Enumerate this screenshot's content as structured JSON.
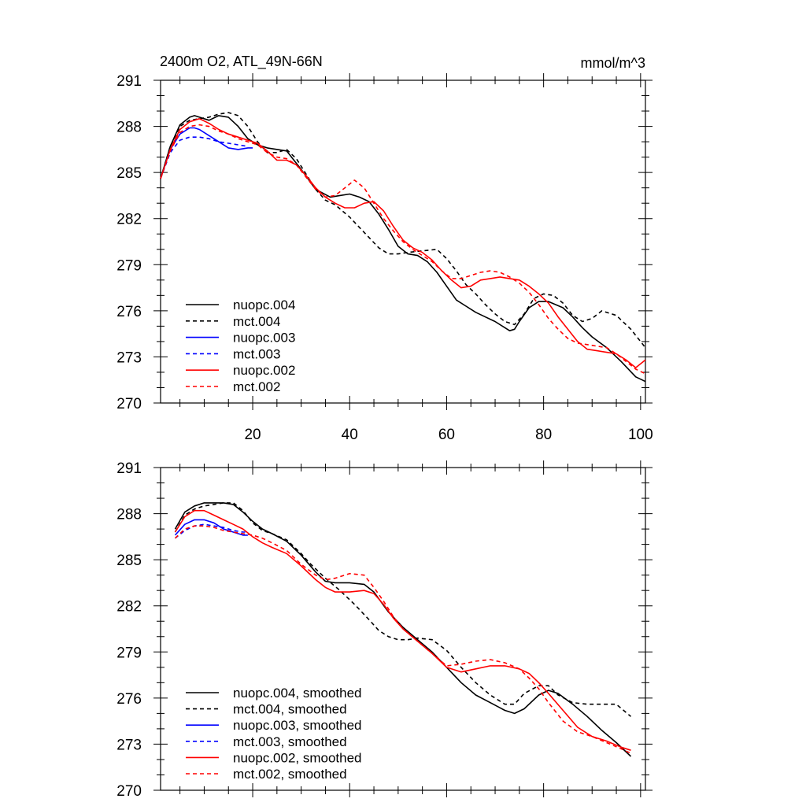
{
  "colors": {
    "black": "#000000",
    "blue": "#0000ff",
    "red": "#ff0000"
  },
  "chart_data": [
    {
      "type": "line",
      "title": "2400m O2, ATL_49N-66N",
      "units": "mmol/m^3",
      "xlim": [
        1,
        101
      ],
      "ylim": [
        270,
        291
      ],
      "xticks": [
        20,
        40,
        60,
        80,
        100
      ],
      "show_x_tick_labels": true,
      "yticks": [
        270,
        273,
        276,
        279,
        282,
        285,
        288,
        291
      ],
      "grid": false,
      "legend_position": "bottom-left",
      "series": [
        {
          "name": "nuopc.004",
          "color": "#000000",
          "dash": "solid",
          "x": [
            1,
            3,
            5,
            7,
            8,
            9,
            11,
            13,
            15,
            17,
            19,
            21,
            23,
            27,
            30,
            33,
            36,
            38,
            40,
            42,
            44,
            46,
            48,
            50,
            52,
            54,
            56,
            58,
            60,
            62,
            64,
            66,
            68,
            70,
            72,
            73,
            74,
            75,
            77,
            79,
            81,
            84,
            86,
            88,
            90,
            93,
            96,
            99,
            101
          ],
          "y": [
            284.6,
            286.7,
            288.1,
            288.6,
            288.7,
            288.6,
            288.4,
            288.7,
            288.6,
            288.0,
            287.2,
            286.8,
            286.6,
            286.4,
            285.2,
            283.9,
            283.4,
            283.5,
            283.6,
            283.4,
            283.1,
            282.3,
            281.3,
            280.2,
            279.7,
            279.6,
            279.2,
            278.5,
            277.6,
            276.7,
            276.3,
            275.9,
            275.6,
            275.3,
            274.9,
            274.7,
            274.8,
            275.3,
            276.2,
            276.6,
            276.6,
            276.2,
            275.6,
            274.9,
            274.3,
            273.6,
            272.7,
            271.7,
            271.4
          ]
        },
        {
          "name": "mct.004",
          "color": "#000000",
          "dash": "dash",
          "x": [
            1,
            3,
            5,
            7,
            9,
            11,
            13,
            15,
            17,
            19,
            21,
            23,
            25,
            27,
            29,
            31,
            33,
            35,
            37,
            40,
            43,
            46,
            48,
            50,
            52,
            55,
            58,
            60,
            62,
            64,
            66,
            68,
            70,
            72,
            74,
            76,
            78,
            80,
            82,
            84,
            86,
            88,
            90,
            92,
            95,
            98,
            101
          ],
          "y": [
            284.6,
            286.7,
            288.0,
            288.4,
            288.5,
            288.6,
            288.8,
            288.9,
            288.7,
            288.0,
            287.0,
            286.3,
            286.3,
            286.5,
            285.9,
            284.9,
            283.9,
            283.2,
            282.9,
            282.1,
            281.1,
            280.1,
            279.7,
            279.7,
            279.8,
            279.9,
            280.0,
            279.4,
            278.6,
            277.7,
            277.1,
            276.4,
            275.8,
            275.3,
            275.1,
            275.8,
            276.8,
            277.1,
            277.0,
            276.5,
            275.7,
            275.3,
            275.5,
            276.0,
            275.7,
            274.8,
            273.6
          ]
        },
        {
          "name": "nuopc.003",
          "color": "#0000ff",
          "dash": "solid",
          "x": [
            1,
            3,
            5,
            7,
            8,
            9,
            11,
            13,
            15,
            17,
            19,
            20
          ],
          "y": [
            284.6,
            286.5,
            287.5,
            287.9,
            287.9,
            287.8,
            287.4,
            287.0,
            286.6,
            286.5,
            286.6,
            286.6
          ]
        },
        {
          "name": "mct.003",
          "color": "#0000ff",
          "dash": "dash",
          "x": [
            1,
            3,
            5,
            7,
            9,
            11,
            13,
            15,
            17,
            19
          ],
          "y": [
            284.6,
            286.3,
            287.1,
            287.3,
            287.3,
            287.2,
            287.0,
            286.9,
            286.8,
            286.7
          ]
        },
        {
          "name": "nuopc.002",
          "color": "#ff0000",
          "dash": "solid",
          "x": [
            1,
            3,
            5,
            7,
            9,
            11,
            13,
            15,
            17,
            19,
            21,
            23,
            25,
            27,
            29,
            31,
            33,
            35,
            37,
            39,
            41,
            43,
            45,
            47,
            49,
            51,
            53,
            55,
            57,
            59,
            61,
            63,
            65,
            67,
            69,
            71,
            73,
            75,
            77,
            79,
            81,
            83,
            85,
            87,
            89,
            91,
            93,
            95,
            97,
            99,
            101
          ],
          "y": [
            284.6,
            286.5,
            287.8,
            288.3,
            288.5,
            288.2,
            287.8,
            287.5,
            287.3,
            287.1,
            286.9,
            286.4,
            285.8,
            285.8,
            285.5,
            284.8,
            284.0,
            283.4,
            283.0,
            282.7,
            282.7,
            283.0,
            283.1,
            282.5,
            281.5,
            280.6,
            280.1,
            279.8,
            279.3,
            278.6,
            278.0,
            277.5,
            277.6,
            278.0,
            278.1,
            278.2,
            278.1,
            278.0,
            277.6,
            277.1,
            276.5,
            275.6,
            274.8,
            274.0,
            273.5,
            273.4,
            273.3,
            273.2,
            272.8,
            272.3,
            272.8
          ]
        },
        {
          "name": "mct.002",
          "color": "#ff0000",
          "dash": "dash",
          "x": [
            1,
            3,
            5,
            7,
            9,
            11,
            13,
            15,
            17,
            19,
            21,
            23,
            25,
            27,
            29,
            31,
            33,
            35,
            37,
            39,
            41,
            43,
            45,
            47,
            49,
            51,
            53,
            55,
            57,
            59,
            61,
            63,
            65,
            67,
            69,
            71,
            73,
            75,
            77,
            79,
            81,
            83,
            85,
            87,
            89,
            91,
            93,
            95,
            97,
            99,
            101
          ],
          "y": [
            284.6,
            286.4,
            287.6,
            288.0,
            288.1,
            288.0,
            287.7,
            287.5,
            287.2,
            287.0,
            286.8,
            286.3,
            286.0,
            285.9,
            285.5,
            284.7,
            283.9,
            283.4,
            283.5,
            284.0,
            284.5,
            284.0,
            283.0,
            282.0,
            281.2,
            280.5,
            280.0,
            279.6,
            279.2,
            278.6,
            278.1,
            278.1,
            278.3,
            278.5,
            278.6,
            278.5,
            278.2,
            277.8,
            277.2,
            276.4,
            275.5,
            274.8,
            274.2,
            273.9,
            273.8,
            273.7,
            273.6,
            273.2,
            272.7,
            272.2,
            271.9
          ]
        }
      ]
    },
    {
      "type": "line",
      "xlim": [
        1,
        101
      ],
      "ylim": [
        270,
        291
      ],
      "xticks": [
        20,
        40,
        60,
        80,
        100
      ],
      "show_x_tick_labels": false,
      "yticks": [
        270,
        273,
        276,
        279,
        282,
        285,
        288,
        291
      ],
      "grid": false,
      "legend_position": "bottom-left",
      "series": [
        {
          "name": "nuopc.004, smoothed",
          "color": "#000000",
          "dash": "solid",
          "x": [
            4,
            6,
            8,
            10,
            12,
            14,
            16,
            18,
            20,
            22,
            24,
            27,
            30,
            33,
            35,
            37,
            40,
            43,
            45,
            48,
            51,
            54,
            57,
            60,
            63,
            66,
            69,
            72,
            74,
            76,
            79,
            81,
            83,
            86,
            89,
            92,
            95,
            98
          ],
          "y": [
            287.0,
            288.1,
            288.5,
            288.7,
            288.7,
            288.7,
            288.6,
            288.1,
            287.5,
            287.0,
            286.7,
            286.2,
            285.3,
            284.2,
            283.6,
            283.5,
            283.5,
            283.4,
            282.9,
            281.6,
            280.6,
            279.8,
            279.0,
            278.0,
            277.0,
            276.2,
            275.7,
            275.2,
            275.0,
            275.3,
            276.2,
            276.5,
            276.3,
            275.6,
            274.8,
            273.9,
            273.1,
            272.2
          ]
        },
        {
          "name": "mct.004, smoothed",
          "color": "#000000",
          "dash": "dash",
          "x": [
            4,
            6,
            8,
            10,
            12,
            14,
            16,
            18,
            20,
            22,
            24,
            27,
            30,
            32,
            35,
            38,
            41,
            44,
            46,
            48,
            50,
            52,
            54,
            57,
            60,
            63,
            66,
            69,
            72,
            74,
            76,
            79,
            81,
            83,
            86,
            89,
            92,
            95,
            98
          ],
          "y": [
            286.8,
            287.9,
            288.3,
            288.5,
            288.6,
            288.7,
            288.7,
            288.2,
            287.4,
            286.9,
            286.7,
            286.3,
            285.4,
            284.7,
            283.8,
            283.0,
            282.1,
            281.1,
            280.4,
            280.0,
            279.8,
            279.8,
            279.9,
            279.8,
            279.1,
            278.0,
            277.0,
            276.2,
            275.6,
            275.6,
            276.3,
            276.8,
            276.8,
            276.2,
            275.7,
            275.6,
            275.6,
            275.6,
            274.8
          ]
        },
        {
          "name": "nuopc.003, smoothed",
          "color": "#0000ff",
          "dash": "solid",
          "x": [
            4,
            6,
            8,
            10,
            12,
            14,
            16,
            18,
            19
          ],
          "y": [
            286.6,
            287.3,
            287.6,
            287.6,
            287.4,
            287.0,
            286.8,
            286.6,
            286.6
          ]
        },
        {
          "name": "mct.003, smoothed",
          "color": "#0000ff",
          "dash": "dash",
          "x": [
            4,
            6,
            8,
            10,
            12,
            14,
            16,
            18,
            19
          ],
          "y": [
            286.4,
            286.9,
            287.2,
            287.3,
            287.2,
            287.1,
            286.9,
            286.8,
            286.8
          ]
        },
        {
          "name": "nuopc.002, smoothed",
          "color": "#ff0000",
          "dash": "solid",
          "x": [
            4,
            6,
            8,
            10,
            12,
            14,
            16,
            18,
            20,
            22,
            24,
            27,
            30,
            33,
            35,
            37,
            40,
            43,
            45,
            47,
            49,
            51,
            54,
            57,
            60,
            63,
            66,
            69,
            72,
            75,
            77,
            79,
            81,
            84,
            87,
            90,
            93,
            96,
            98
          ],
          "y": [
            286.8,
            287.8,
            288.2,
            288.2,
            287.9,
            287.6,
            287.3,
            287.0,
            286.5,
            286.1,
            285.8,
            285.4,
            284.6,
            283.7,
            283.2,
            282.9,
            282.9,
            283.0,
            282.8,
            282.1,
            281.2,
            280.5,
            279.7,
            278.9,
            278.0,
            277.7,
            277.9,
            278.1,
            278.1,
            277.9,
            277.6,
            277.0,
            276.3,
            275.2,
            274.1,
            273.5,
            273.2,
            272.8,
            272.6
          ]
        },
        {
          "name": "mct.002, smoothed",
          "color": "#ff0000",
          "dash": "dash",
          "x": [
            4,
            6,
            8,
            10,
            12,
            14,
            16,
            18,
            20,
            22,
            24,
            27,
            30,
            33,
            35,
            37,
            40,
            43,
            45,
            47,
            49,
            51,
            54,
            57,
            60,
            63,
            66,
            69,
            72,
            75,
            77,
            79,
            81,
            84,
            87,
            90,
            93,
            96,
            98
          ],
          "y": [
            286.4,
            287.0,
            287.2,
            287.2,
            287.1,
            286.9,
            286.8,
            286.7,
            286.6,
            286.4,
            286.1,
            285.6,
            284.7,
            284.0,
            283.7,
            283.8,
            284.1,
            284.0,
            283.2,
            282.3,
            281.3,
            280.5,
            279.7,
            278.9,
            278.1,
            278.2,
            278.4,
            278.5,
            278.3,
            277.9,
            277.3,
            276.6,
            275.7,
            274.5,
            273.8,
            273.5,
            273.1,
            272.7,
            272.4
          ]
        }
      ]
    }
  ]
}
